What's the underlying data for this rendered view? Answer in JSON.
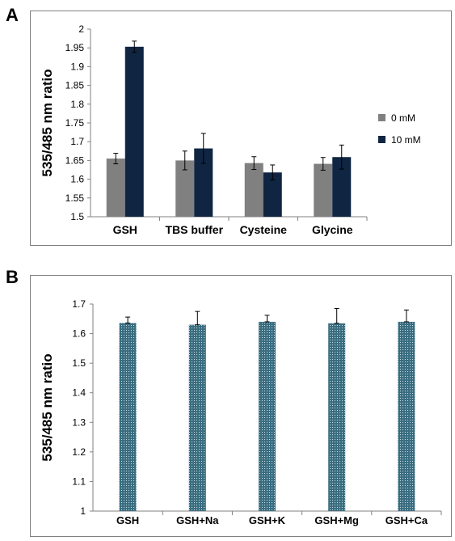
{
  "panels": {
    "a": {
      "letter": "A"
    },
    "b": {
      "letter": "B"
    }
  },
  "colors": {
    "bar_0mm": "#808080",
    "bar_10mm": "#0f2542",
    "bar_b_fill": "#3a6d80",
    "bar_b_dot": "#c9dde2",
    "axis": "#808080",
    "frame": "#808080"
  },
  "chart_data": [
    {
      "type": "bar",
      "panel": "A",
      "title": "",
      "xlabel": "",
      "ylabel": "535/485 nm ratio",
      "ylim": [
        1.5,
        2.0
      ],
      "yticks": [
        "1.5",
        "1.55",
        "1.6",
        "1.65",
        "1.7",
        "1.75",
        "1.8",
        "1.85",
        "1.9",
        "1.95",
        "2"
      ],
      "grid": false,
      "legend_position": "right",
      "categories": [
        "GSH",
        "TBS buffer",
        "Cysteine",
        "Glycine"
      ],
      "series": [
        {
          "name": "0 mM",
          "values": [
            1.655,
            1.65,
            1.643,
            1.641
          ],
          "errors": [
            0.014,
            0.025,
            0.017,
            0.017
          ]
        },
        {
          "name": "10 mM",
          "values": [
            1.953,
            1.682,
            1.618,
            1.659
          ],
          "errors": [
            0.015,
            0.04,
            0.02,
            0.032
          ]
        }
      ]
    },
    {
      "type": "bar",
      "panel": "B",
      "title": "",
      "xlabel": "",
      "ylabel": "535/485 nm ratio",
      "ylim": [
        1.0,
        1.7
      ],
      "yticks": [
        "1",
        "1.1",
        "1.2",
        "1.3",
        "1.4",
        "1.5",
        "1.6",
        "1.7"
      ],
      "grid": false,
      "categories": [
        "GSH",
        "GSH+Na",
        "GSH+K",
        "GSH+Mg",
        "GSH+Ca"
      ],
      "values": [
        1.636,
        1.63,
        1.64,
        1.635,
        1.64
      ],
      "errors": [
        0.02,
        0.045,
        0.022,
        0.05,
        0.04
      ]
    }
  ]
}
